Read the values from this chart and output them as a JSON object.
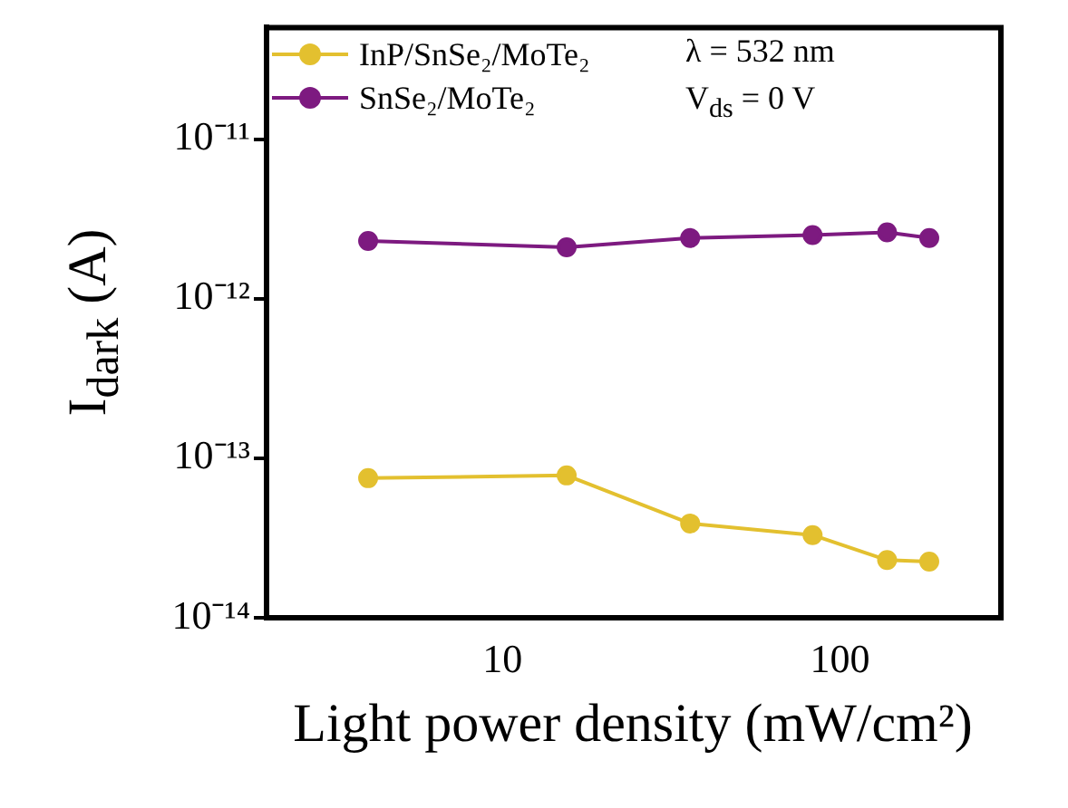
{
  "chart_data": {
    "type": "line",
    "xlabel": "Light power density (mW/cm²)",
    "ylabel": "I$_{dark}$ (A)",
    "log": "xy",
    "marker": "circle",
    "legend": "top left",
    "x": [
      4,
      15.5,
      36,
      83,
      138,
      184
    ],
    "xlim": [
      2,
      300
    ],
    "xticks": [
      10,
      100
    ],
    "ylim": [
      1e-14,
      5e-11
    ],
    "yticks": [
      {
        "value": 1e-14,
        "label": "10⁻¹⁴"
      },
      {
        "value": 1e-13,
        "label": "10⁻¹³"
      },
      {
        "value": 1e-12,
        "label": "10⁻¹²"
      },
      {
        "value": 1e-11,
        "label": "10⁻¹¹"
      }
    ],
    "series": [
      {
        "name": "InP/SnSe₂/MoTe₂",
        "color": "#e3c02f",
        "values": [
          7.5e-14,
          7.8e-14,
          3.9e-14,
          3.3e-14,
          2.3e-14,
          2.25e-14
        ]
      },
      {
        "name": "SnSe₂/MoTe₂",
        "color": "#7d1a80",
        "values": [
          2.3e-12,
          2.1e-12,
          2.4e-12,
          2.5e-12,
          2.6e-12,
          2.4e-12
        ]
      }
    ],
    "annotations": [
      "λ = 532 nm",
      "V$_{ds}$ = 0 V"
    ]
  }
}
